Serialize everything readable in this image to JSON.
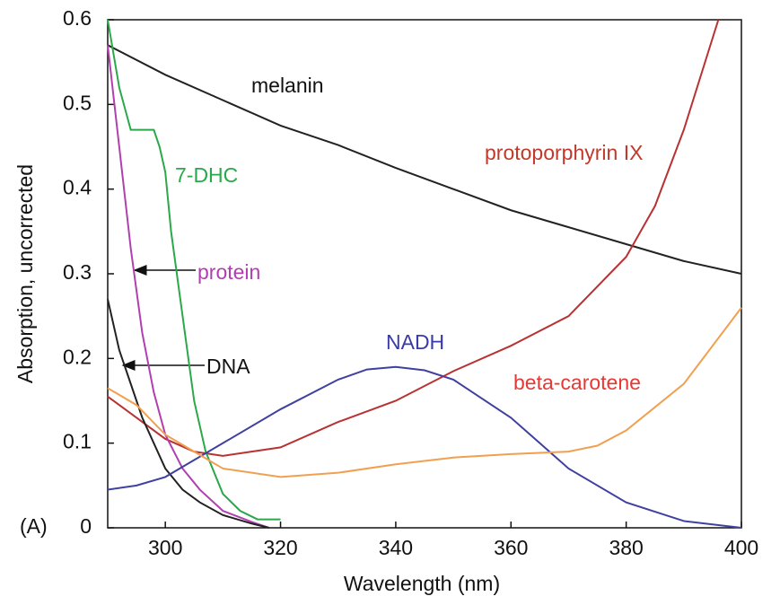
{
  "chart_data": {
    "type": "line",
    "xlabel": "Wavelength (nm)",
    "ylabel": "Absorption, uncorrected",
    "annotation": "(A)",
    "xlim": [
      290,
      400
    ],
    "xticks": [
      300,
      320,
      340,
      360,
      380,
      400
    ],
    "ylim": [
      0,
      0.6
    ],
    "yticks": [
      0,
      0.1,
      0.2,
      0.3,
      0.4,
      0.5,
      0.6
    ],
    "series": [
      {
        "name": "melanin",
        "color": "#222222",
        "label_color": "#111111",
        "x": [
          290,
          300,
          310,
          320,
          330,
          340,
          350,
          360,
          370,
          380,
          390,
          400
        ],
        "values": [
          0.57,
          0.535,
          0.505,
          0.475,
          0.452,
          0.425,
          0.4,
          0.375,
          0.355,
          0.335,
          0.315,
          0.3
        ]
      },
      {
        "name": "protoporphyrin IX",
        "color": "#b83232",
        "label_color": "#c0392b",
        "x": [
          290,
          295,
          300,
          305,
          310,
          320,
          330,
          340,
          350,
          360,
          370,
          380,
          385,
          390,
          396
        ],
        "values": [
          0.155,
          0.13,
          0.105,
          0.09,
          0.085,
          0.095,
          0.125,
          0.15,
          0.185,
          0.215,
          0.25,
          0.32,
          0.38,
          0.47,
          0.6
        ]
      },
      {
        "name": "7-DHC",
        "color": "#2aa84a",
        "label_color": "#2aa84a",
        "x": [
          290,
          292,
          294,
          298,
          299,
          300,
          301,
          303,
          305,
          307,
          310,
          313,
          316,
          320
        ],
        "values": [
          0.6,
          0.52,
          0.47,
          0.47,
          0.45,
          0.42,
          0.35,
          0.25,
          0.15,
          0.09,
          0.04,
          0.02,
          0.01,
          0.01
        ]
      },
      {
        "name": "protein",
        "color": "#b040b0",
        "label_color": "#b040b0",
        "x": [
          290,
          292,
          294,
          296,
          298,
          300,
          303,
          306,
          310,
          315,
          318
        ],
        "values": [
          0.57,
          0.45,
          0.33,
          0.23,
          0.16,
          0.11,
          0.07,
          0.045,
          0.02,
          0.007,
          0
        ]
      },
      {
        "name": "DNA",
        "color": "#222222",
        "label_color": "#111111",
        "x": [
          290,
          292,
          294,
          296,
          298,
          300,
          303,
          306,
          310,
          315,
          318
        ],
        "values": [
          0.27,
          0.21,
          0.17,
          0.13,
          0.1,
          0.07,
          0.045,
          0.03,
          0.015,
          0.005,
          0
        ]
      },
      {
        "name": "NADH",
        "color": "#4040a0",
        "label_color": "#3a3aa8",
        "x": [
          290,
          295,
          300,
          305,
          310,
          320,
          330,
          335,
          340,
          345,
          350,
          360,
          365,
          370,
          380,
          390,
          400
        ],
        "values": [
          0.045,
          0.05,
          0.06,
          0.08,
          0.1,
          0.14,
          0.175,
          0.187,
          0.19,
          0.186,
          0.175,
          0.13,
          0.1,
          0.07,
          0.03,
          0.008,
          0
        ]
      },
      {
        "name": "beta-carotene",
        "color": "#f0a050",
        "label_color": "#e53935",
        "x": [
          290,
          295,
          300,
          305,
          310,
          320,
          330,
          340,
          350,
          360,
          370,
          375,
          380,
          390,
          400
        ],
        "values": [
          0.165,
          0.145,
          0.11,
          0.09,
          0.07,
          0.06,
          0.065,
          0.075,
          0.083,
          0.087,
          0.09,
          0.097,
          0.115,
          0.17,
          0.26
        ]
      }
    ]
  }
}
